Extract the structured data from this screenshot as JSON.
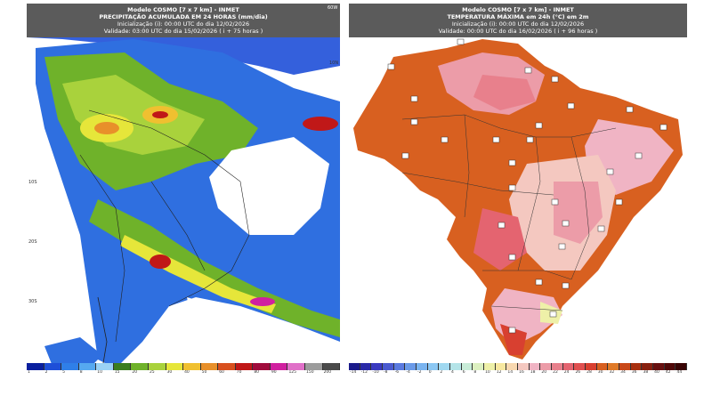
{
  "left_panel": {
    "title_line1": "Modelo COSMO [7 x 7 km] - INMET",
    "title_line2": "PRECIPITAÇÃO ACUMULADA EM 24 HORAS (mm/dia)",
    "title_line3": "Inicialização (i): 00:00 UTC do dia 12/02/2026",
    "title_line4": "Validade: 03:00 UTC do dia 15/02/2026 ( i + 75 horas )",
    "lat_labels": [
      "10S",
      "20S",
      "30S"
    ],
    "top_right_label": "60W",
    "right_label": "10N",
    "colorbar": {
      "labels": [
        "1",
        "2",
        "5",
        "8",
        "10",
        "15",
        "20",
        "25",
        "30",
        "40",
        "50",
        "60",
        "70",
        "80",
        "90",
        "125",
        "150",
        "200"
      ],
      "colors": [
        "#0a1f9e",
        "#1e4fd8",
        "#2f7fe8",
        "#56a9f0",
        "#9ad2f5",
        "#3a7d1f",
        "#6fb22a",
        "#a9d23c",
        "#e6e63a",
        "#f0c030",
        "#e8902a",
        "#d8501e",
        "#c01818",
        "#a00c3c",
        "#d020a0",
        "#e070c8",
        "#9c9c9c",
        "#4a4a4a"
      ]
    }
  },
  "right_panel": {
    "title_line1": "Modelo COSMO [7 x 7 km] - INMET",
    "title_line2": "TEMPERATURA MÁXIMA em 24h (°C) em 2m",
    "title_line3": "Inicialização (i): 00:00 UTC do dia 12/02/2026",
    "title_line4": "Validade: 00:00 UTC do dia 16/02/2026 ( i + 96 horas )",
    "colorbar": {
      "labels": [
        "-14",
        "-12",
        "-10",
        "-8",
        "-6",
        "-4",
        "-2",
        "0",
        "2",
        "4",
        "6",
        "8",
        "10",
        "12",
        "14",
        "16",
        "18",
        "20",
        "22",
        "24",
        "26",
        "28",
        "30",
        "32",
        "34",
        "36",
        "38",
        "40",
        "42",
        "44"
      ],
      "colors": [
        "#1a1a8a",
        "#2a2aa8",
        "#3a3ac0",
        "#4a5ad0",
        "#5a7ae0",
        "#6a9ae8",
        "#7ab4f0",
        "#8cc8f4",
        "#a0d8f0",
        "#b4e4e8",
        "#c8ecd8",
        "#dcf0c0",
        "#eef0a8",
        "#f8e8a0",
        "#f8d8b0",
        "#f4c8c0",
        "#f0b4c4",
        "#ec9ca8",
        "#e8808c",
        "#e46470",
        "#e05050",
        "#d84030",
        "#d86020",
        "#e07a28",
        "#c84818",
        "#a83010",
        "#882010",
        "#681010",
        "#500808",
        "#380404"
      ]
    }
  }
}
